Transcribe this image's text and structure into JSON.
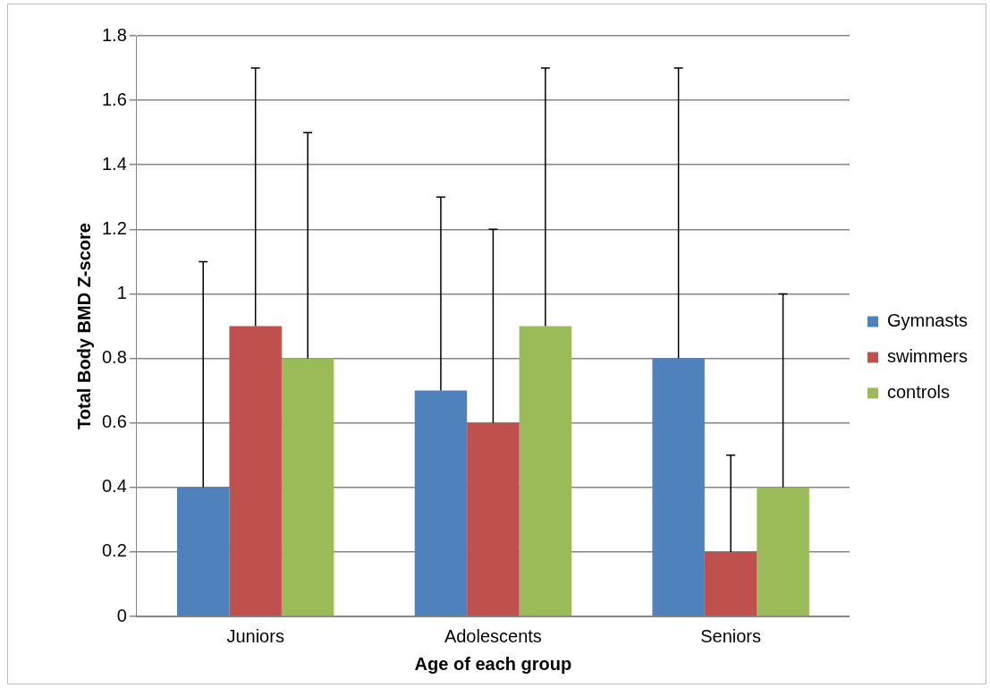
{
  "chart_data": {
    "type": "bar",
    "xlabel": "Age of each group",
    "ylabel": "Total Body BMD Z-score",
    "categories": [
      "Juniors",
      "Adolescents",
      "Seniors"
    ],
    "series": [
      {
        "name": "Gymnasts",
        "color": "#4f81bd",
        "values": [
          0.4,
          0.7,
          0.8
        ],
        "errors": [
          [
            0.4,
            1.1
          ],
          [
            0.7,
            1.3
          ],
          [
            0.8,
            1.7
          ]
        ]
      },
      {
        "name": "swimmers",
        "color": "#c0504d",
        "values": [
          0.9,
          0.6,
          0.2
        ],
        "errors": [
          [
            0.9,
            1.7
          ],
          [
            0.6,
            1.2
          ],
          [
            0.2,
            0.5
          ]
        ]
      },
      {
        "name": "controls",
        "color": "#9bbb59",
        "values": [
          0.8,
          0.9,
          0.4
        ],
        "errors": [
          [
            0.8,
            1.5
          ],
          [
            0.9,
            1.7
          ],
          [
            0.4,
            1.0
          ]
        ]
      }
    ],
    "ylim": [
      0,
      1.8
    ],
    "yticks": [
      0,
      0.2,
      0.4,
      0.6,
      0.8,
      1,
      1.2,
      1.4,
      1.6,
      1.8
    ],
    "grid": "y",
    "legend": "right"
  }
}
